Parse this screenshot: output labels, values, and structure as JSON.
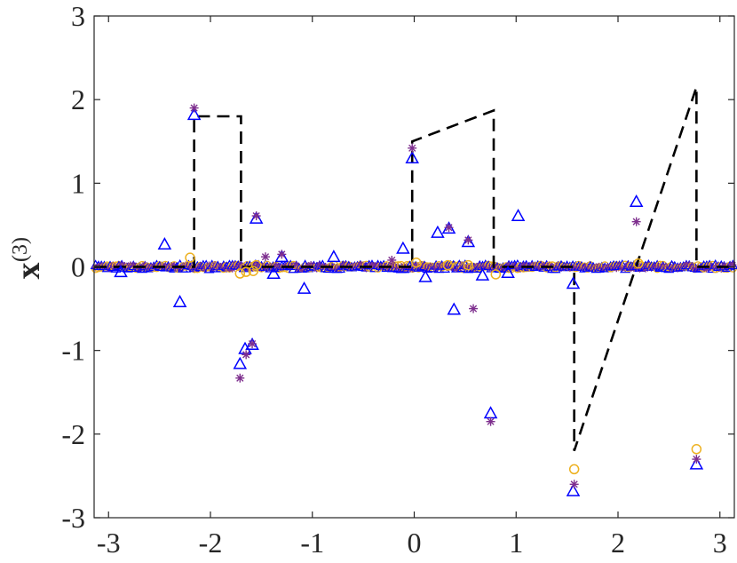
{
  "chart_data": {
    "type": "scatter",
    "title": "",
    "xlabel": "",
    "ylabel": {
      "main": "x",
      "superscript": "(3)"
    },
    "xlim": [
      -3.14159,
      3.14159
    ],
    "ylim": [
      -3,
      3
    ],
    "x_ticks": [
      -3,
      -2,
      -1,
      0,
      1,
      2,
      3
    ],
    "y_ticks": [
      -3,
      -2,
      -1,
      0,
      1,
      2,
      3
    ],
    "x_tick_labels": [
      "-3",
      "-2",
      "-1",
      "0",
      "1",
      "2",
      "3"
    ],
    "y_tick_labels": [
      "-3",
      "-2",
      "-1",
      "0",
      "1",
      "2",
      "3"
    ],
    "grid": false,
    "legend": "none",
    "colors": {
      "truth": "#000000",
      "triangle": "#0000ff",
      "circle": "#edb120",
      "star": "#7e2f8e",
      "axes": "#262626"
    },
    "series": [
      {
        "marker": "dashed-line",
        "role": "truth",
        "points": [
          [
            -3.142,
            0
          ],
          [
            -2.16,
            0
          ],
          [
            -2.16,
            1.8
          ],
          [
            -1.7,
            1.8
          ],
          [
            -1.7,
            0
          ],
          [
            -0.02,
            0
          ],
          [
            -0.02,
            1.5
          ],
          [
            0.78,
            1.87
          ],
          [
            0.78,
            0
          ],
          [
            1.57,
            0
          ],
          [
            1.57,
            -2.2
          ],
          [
            2.77,
            2.15
          ],
          [
            2.77,
            0
          ],
          [
            3.142,
            0
          ]
        ]
      },
      {
        "marker": "triangle",
        "points": [
          [
            -2.16,
            1.82
          ],
          [
            -2.45,
            0.27
          ],
          [
            -2.3,
            -0.42
          ],
          [
            -2.88,
            -0.06
          ],
          [
            -1.71,
            -1.16
          ],
          [
            -1.66,
            -0.98
          ],
          [
            -1.59,
            -0.93
          ],
          [
            -1.55,
            0.58
          ],
          [
            -1.38,
            -0.08
          ],
          [
            -1.3,
            0.12
          ],
          [
            -1.08,
            -0.26
          ],
          [
            -0.79,
            0.12
          ],
          [
            -0.02,
            1.3
          ],
          [
            -0.11,
            0.22
          ],
          [
            0.11,
            -0.12
          ],
          [
            0.23,
            0.41
          ],
          [
            0.34,
            0.46
          ],
          [
            0.39,
            -0.51
          ],
          [
            0.53,
            0.3
          ],
          [
            0.67,
            -0.1
          ],
          [
            0.75,
            -1.75
          ],
          [
            0.92,
            -0.07
          ],
          [
            1.02,
            0.61
          ],
          [
            1.56,
            -0.2
          ],
          [
            1.56,
            -2.68
          ],
          [
            2.18,
            0.78
          ],
          [
            2.77,
            -2.36
          ]
        ]
      },
      {
        "marker": "circle",
        "points": [
          [
            -2.2,
            0.11
          ],
          [
            -1.71,
            -0.08
          ],
          [
            -1.65,
            -0.06
          ],
          [
            -1.58,
            -0.05
          ],
          [
            -1.55,
            0.02
          ],
          [
            0.02,
            0.05
          ],
          [
            0.33,
            0.02
          ],
          [
            0.53,
            0.02
          ],
          [
            0.8,
            -0.09
          ],
          [
            1.57,
            -2.42
          ],
          [
            2.2,
            0.04
          ],
          [
            2.77,
            -2.18
          ]
        ]
      },
      {
        "marker": "star",
        "points": [
          [
            -2.16,
            1.9
          ],
          [
            -1.71,
            -1.33
          ],
          [
            -1.65,
            -1.05
          ],
          [
            -1.59,
            -0.92
          ],
          [
            -1.55,
            0.61
          ],
          [
            -1.46,
            0.12
          ],
          [
            -1.3,
            0.15
          ],
          [
            -0.22,
            0.08
          ],
          [
            -0.02,
            1.42
          ],
          [
            0.34,
            0.47
          ],
          [
            0.53,
            0.32
          ],
          [
            0.58,
            -0.5
          ],
          [
            0.75,
            -1.85
          ],
          [
            1.57,
            -2.6
          ],
          [
            2.18,
            0.54
          ],
          [
            2.77,
            -2.3
          ]
        ]
      }
    ]
  }
}
